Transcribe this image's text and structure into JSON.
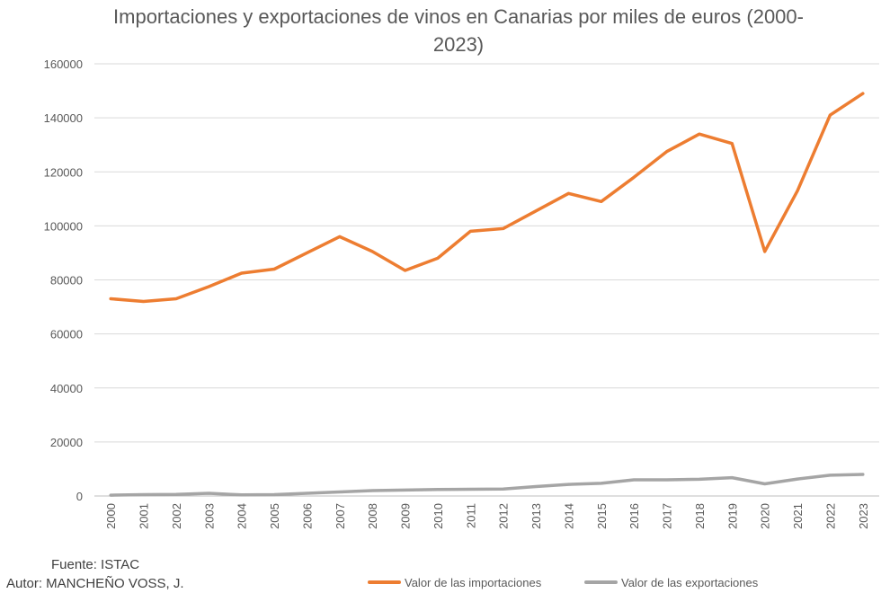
{
  "chart_data": {
    "type": "line",
    "title_lines": [
      "Importaciones y exportaciones de vinos en Canarias por miles de euros (2000-",
      "2023)"
    ],
    "xlabel": "",
    "ylabel": "",
    "ylim": [
      0,
      160000
    ],
    "yticks": [
      "0",
      "20000",
      "40000",
      "60000",
      "80000",
      "100000",
      "120000",
      "140000",
      "160000"
    ],
    "categories": [
      "2000",
      "2001",
      "2002",
      "2003",
      "2004",
      "2005",
      "2006",
      "2007",
      "2008",
      "2009",
      "2010",
      "2011",
      "2012",
      "2013",
      "2014",
      "2015",
      "2016",
      "2017",
      "2018",
      "2019",
      "2020",
      "2021",
      "2022",
      "2023"
    ],
    "grid": true,
    "legend_position": "bottom-right",
    "series": [
      {
        "name": "Valor de las importaciones",
        "color": "#ED7D31",
        "values": [
          73000,
          72000,
          73000,
          77500,
          82500,
          84000,
          90000,
          96000,
          90500,
          83500,
          88000,
          98000,
          99000,
          105500,
          112000,
          109000,
          118000,
          127500,
          134000,
          130500,
          90500,
          113000,
          141000,
          149000
        ]
      },
      {
        "name": "Valor de las exportaciones",
        "color": "#A5A5A5",
        "values": [
          300,
          500,
          600,
          1000,
          400,
          500,
          1000,
          1500,
          2000,
          2200,
          2400,
          2500,
          2600,
          3500,
          4300,
          4700,
          6000,
          6000,
          6200,
          6800,
          4500,
          6300,
          7700,
          8000
        ]
      }
    ]
  },
  "footer": {
    "source": "Fuente: ISTAC",
    "author": "Autor: MANCHEÑO VOSS, J."
  }
}
